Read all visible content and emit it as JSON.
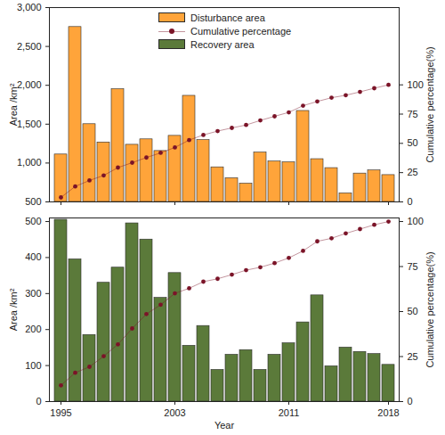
{
  "chart_data": [
    {
      "type": "bar",
      "categories": [
        1995,
        1996,
        1997,
        1998,
        1999,
        2000,
        2001,
        2002,
        2003,
        2004,
        2005,
        2006,
        2007,
        2008,
        2009,
        2010,
        2011,
        2012,
        2013,
        2014,
        2015,
        2016,
        2017,
        2018
      ],
      "xticks": [
        1995,
        2003,
        2011,
        2018
      ],
      "tick_labels": "y",
      "ylim": [
        500,
        3000
      ],
      "yticks": [
        500,
        1000,
        1500,
        2000,
        2500,
        3000
      ],
      "y_label": "Area /km²",
      "y2lim": [
        0,
        166
      ],
      "y2ticks": [
        0,
        25,
        50,
        75,
        100
      ],
      "y2_label": "Cumulative percentage(%)",
      "legend": "top",
      "series": [
        {
          "name": "Disturbance area",
          "color": "#ffa43a",
          "values": [
            1110,
            2750,
            1500,
            1265,
            1950,
            1235,
            1305,
            1155,
            1350,
            1865,
            1295,
            945,
            805,
            735,
            1135,
            1020,
            1010,
            1670,
            1050,
            935,
            610,
            865,
            905,
            845
          ]
        },
        {
          "name": "Cumulative percentage",
          "type": "line",
          "axis": "y2",
          "color": "#7b1428",
          "marker": "circle",
          "values": [
            3.8,
            13.2,
            18.3,
            22.6,
            29.3,
            33.5,
            37.9,
            41.9,
            46.5,
            52.8,
            57.2,
            60.5,
            63.2,
            65.7,
            69.6,
            73.1,
            76.5,
            82.2,
            85.8,
            89.0,
            91.1,
            94.0,
            97.1,
            100
          ]
        }
      ]
    },
    {
      "type": "bar",
      "categories": [
        1995,
        1996,
        1997,
        1998,
        1999,
        2000,
        2001,
        2002,
        2003,
        2004,
        2005,
        2006,
        2007,
        2008,
        2009,
        2010,
        2011,
        2012,
        2013,
        2014,
        2015,
        2016,
        2017,
        2018
      ],
      "xticks": [
        1995,
        2003,
        2011,
        2018
      ],
      "x_label": "Year",
      "ylim": [
        0,
        510
      ],
      "yticks": [
        0,
        100,
        200,
        300,
        400,
        500
      ],
      "y_label": "Area /km²",
      "y2lim": [
        0,
        102
      ],
      "y2ticks": [
        0,
        25,
        50,
        75,
        100
      ],
      "y2_label": "Cumulative percentage(%)",
      "series": [
        {
          "name": "Recovery area",
          "color": "#5b7a3a",
          "values": [
            505,
            395,
            185,
            330,
            372,
            495,
            450,
            288,
            357,
            155,
            210,
            88,
            130,
            143,
            88,
            130,
            162,
            220,
            295,
            98,
            150,
            138,
            132,
            102
          ]
        },
        {
          "name": "Cumulative percentage",
          "type": "line",
          "axis": "y2",
          "color": "#7b1428",
          "marker": "circle",
          "values": [
            9.0,
            16.0,
            19.3,
            25.2,
            31.8,
            40.6,
            48.6,
            53.8,
            60.1,
            62.9,
            66.6,
            68.2,
            70.5,
            73.0,
            74.6,
            76.9,
            79.8,
            83.7,
            89.0,
            90.7,
            93.4,
            95.8,
            98.2,
            100
          ]
        }
      ]
    }
  ]
}
